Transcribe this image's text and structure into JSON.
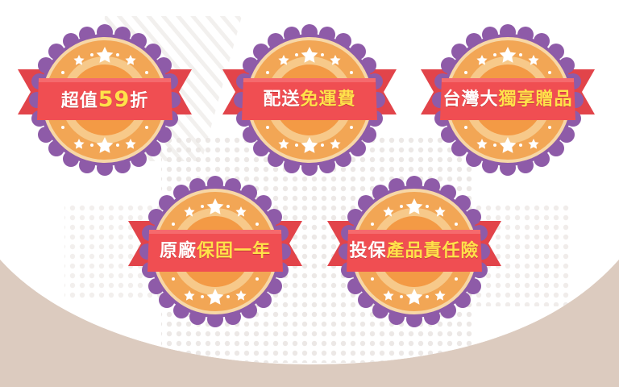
{
  "colors": {
    "background_white": "#ffffff",
    "background_taupe": "#dccbbf",
    "dot_pattern": "#e7e2df",
    "ribbon_red": "#f04e52",
    "ribbon_dark": "#b8323a",
    "ribbon_tail": "#e2444a",
    "rosette_purple": "#8e5ba8",
    "rosette_purple_edge": "#6f4290",
    "ring_cream": "#f7d7a6",
    "ring_orange": "#f2a655",
    "center_orange": "#f39a45",
    "star_white": "#ffffff",
    "text_white": "#ffffff",
    "text_yellow": "#ffe14a"
  },
  "badges": [
    {
      "id": "value-59-off",
      "part1": "超值",
      "part2": "59",
      "part3": "折"
    },
    {
      "id": "delivery",
      "part1": "配送",
      "part2": "免運費",
      "part3": ""
    },
    {
      "id": "taiwan-exclusive",
      "part1": "台灣大",
      "part2": "獨享贈品",
      "part3": ""
    },
    {
      "id": "warranty",
      "part1": "原廠",
      "part2": "保固一年",
      "part3": ""
    },
    {
      "id": "insurance",
      "part1": "投保",
      "part2": "產品責任險",
      "part3": ""
    }
  ]
}
